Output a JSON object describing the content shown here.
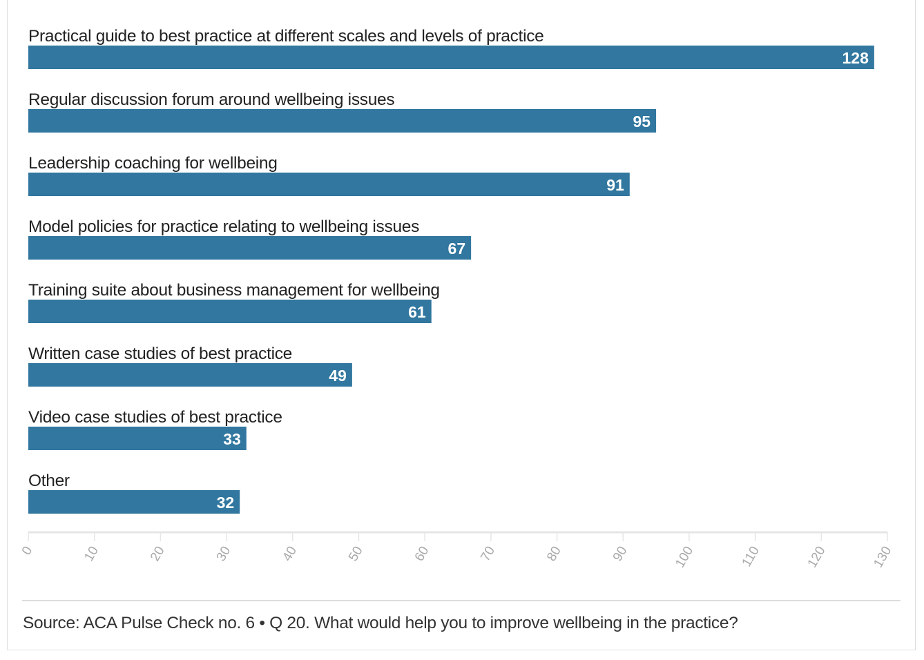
{
  "chart_data": {
    "type": "bar",
    "orientation": "horizontal",
    "categories": [
      "Practical guide to best practice at different scales and levels of practice",
      "Regular discussion forum around wellbeing issues",
      "Leadership coaching for wellbeing",
      "Model policies for practice relating to wellbeing issues",
      "Training suite about business management for wellbeing",
      "Written case studies of best practice",
      "Video case studies of best practice",
      "Other"
    ],
    "values": [
      128,
      95,
      91,
      67,
      61,
      49,
      33,
      32
    ],
    "xlim": [
      0,
      130
    ],
    "xticks": [
      0,
      10,
      20,
      30,
      40,
      50,
      60,
      70,
      80,
      90,
      100,
      110,
      120,
      130
    ],
    "bar_color": "#31779f",
    "data_labels": true,
    "grid": false
  },
  "source": "Source: ACA Pulse Check no. 6 • Q 20. What would help you to improve wellbeing in the practice?"
}
